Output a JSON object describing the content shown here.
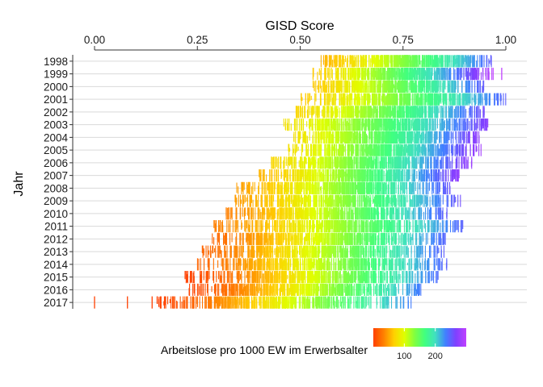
{
  "chart_data": {
    "type": "strip",
    "x_title": "GISD Score",
    "y_title": "Jahr",
    "x_axis_position": "top",
    "xlim": [
      0,
      1
    ],
    "x_ticks": [
      0,
      0.25,
      0.5,
      0.75,
      1
    ],
    "x_tick_labels": [
      "0.00",
      "0.25",
      "0.50",
      "0.75",
      "1.00"
    ],
    "years": [
      "1998",
      "1999",
      "2000",
      "2001",
      "2002",
      "2003",
      "2004",
      "2005",
      "2006",
      "2007",
      "2008",
      "2009",
      "2010",
      "2011",
      "2012",
      "2013",
      "2014",
      "2015",
      "2016",
      "2017"
    ],
    "grid": "horizontal",
    "color_variable": "Arbeitslose pro 1000 EW im Erwerbsalter",
    "legend": {
      "title": "Arbeitslose pro 1000 EW im Erwerbsalter",
      "position": "bottom",
      "breaks": [
        100,
        200
      ],
      "break_labels": [
        "100",
        "200"
      ],
      "range": [
        0,
        300
      ],
      "colors": [
        "#ff4000",
        "#ff8000",
        "#ffd000",
        "#e0ff00",
        "#80ff40",
        "#40ff80",
        "#40e0c0",
        "#4080ff",
        "#8040ff",
        "#c040ff"
      ]
    },
    "series": [
      {
        "year": "1998",
        "min": 0.55,
        "max": 0.97,
        "u_min": 7,
        "u_max": 150
      },
      {
        "year": "1999",
        "min": 0.53,
        "max": 0.97,
        "u_min": 8,
        "u_max": 300,
        "extra_x": [
          0.99
        ]
      },
      {
        "year": "2000",
        "min": 0.53,
        "max": 0.95,
        "u_min": 8,
        "u_max": 150
      },
      {
        "year": "2001",
        "min": 0.5,
        "max": 1.0,
        "u_min": 8,
        "u_max": 140
      },
      {
        "year": "2002",
        "min": 0.49,
        "max": 0.95,
        "u_min": 9,
        "u_max": 170
      },
      {
        "year": "2003",
        "min": 0.46,
        "max": 0.96,
        "u_min": 10,
        "u_max": 200
      },
      {
        "year": "2004",
        "min": 0.48,
        "max": 0.94,
        "u_min": 10,
        "u_max": 220
      },
      {
        "year": "2005",
        "min": 0.47,
        "max": 0.94,
        "u_min": 10,
        "u_max": 240
      },
      {
        "year": "2006",
        "min": 0.43,
        "max": 0.92,
        "u_min": 9,
        "u_max": 230
      },
      {
        "year": "2007",
        "min": 0.4,
        "max": 0.89,
        "u_min": 7,
        "u_max": 220
      },
      {
        "year": "2008",
        "min": 0.34,
        "max": 0.87,
        "u_min": 6,
        "u_max": 160
      },
      {
        "year": "2009",
        "min": 0.34,
        "max": 0.89,
        "u_min": 6,
        "u_max": 160
      },
      {
        "year": "2010",
        "min": 0.32,
        "max": 0.86,
        "u_min": 5,
        "u_max": 150
      },
      {
        "year": "2011",
        "min": 0.29,
        "max": 0.9,
        "u_min": 5,
        "u_max": 140
      },
      {
        "year": "2012",
        "min": 0.28,
        "max": 0.86,
        "u_min": 4,
        "u_max": 140
      },
      {
        "year": "2013",
        "min": 0.26,
        "max": 0.85,
        "u_min": 4,
        "u_max": 140
      },
      {
        "year": "2014",
        "min": 0.25,
        "max": 0.86,
        "u_min": 4,
        "u_max": 140
      },
      {
        "year": "2015",
        "min": 0.22,
        "max": 0.84,
        "u_min": 3,
        "u_max": 130
      },
      {
        "year": "2016",
        "min": 0.22,
        "max": 0.8,
        "u_min": 3,
        "u_max": 120
      },
      {
        "year": "2017",
        "min": 0.15,
        "max": 0.77,
        "u_min": 3,
        "u_max": 110,
        "extra_x": [
          0.0,
          0.08,
          0.14,
          0.16,
          0.17,
          0.19
        ]
      }
    ]
  }
}
